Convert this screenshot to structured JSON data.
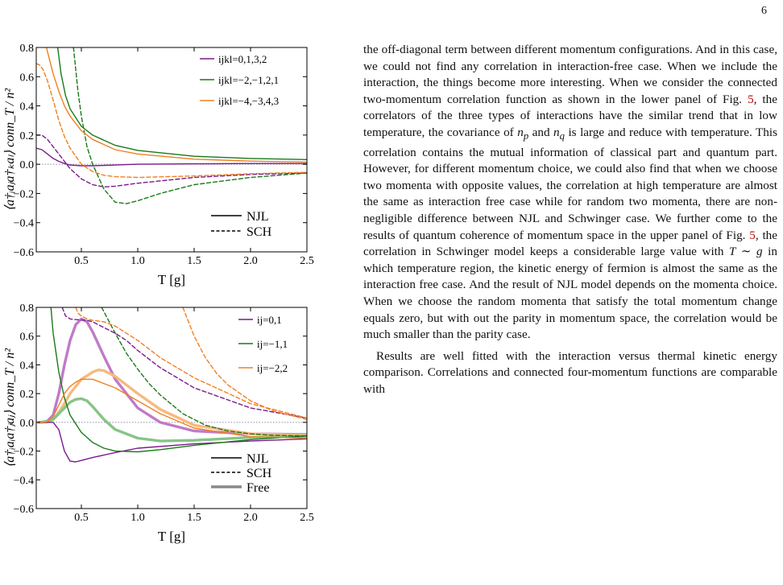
{
  "page_number": "6",
  "chart_data": [
    {
      "type": "line",
      "panel": "top",
      "xlabel": "T [g]",
      "ylabel": "⟨a†ᵢaⱼa†ₖaₗ⟩ conn_T / n²",
      "xlim": [
        0.1,
        2.5
      ],
      "ylim": [
        -0.6,
        0.8
      ],
      "xticks": [
        "0.5",
        "1.0",
        "1.5",
        "2.0",
        "2.5"
      ],
      "yticks": [
        "−0.6",
        "−0.4",
        "−0.2",
        "0.0",
        "0.2",
        "0.4",
        "0.6",
        "0.8"
      ],
      "legend_color": [
        {
          "label": "ijkl=0,1,3,2",
          "color": "#7a1b8c"
        },
        {
          "label": "ijkl=−2,−1,2,1",
          "color": "#1a7a1a"
        },
        {
          "label": "ijkl=−4,−3,4,3",
          "color": "#f08020"
        }
      ],
      "legend_style": [
        {
          "label": "NJL",
          "style": "solid"
        },
        {
          "label": "SCH",
          "style": "dashed"
        }
      ],
      "series": [
        {
          "model": "NJL",
          "color": "#7a1b8c",
          "dash": false,
          "x": [
            0.1,
            0.15,
            0.2,
            0.25,
            0.3,
            0.35,
            0.4,
            0.5,
            0.6,
            0.8,
            1.0,
            1.5,
            2.0,
            2.5
          ],
          "y": [
            0.11,
            0.1,
            0.07,
            0.04,
            0.02,
            0.005,
            -0.005,
            -0.01,
            -0.01,
            -0.005,
            0.0,
            0.003,
            0.005,
            0.005
          ]
        },
        {
          "model": "SCH",
          "color": "#7a1b8c",
          "dash": true,
          "x": [
            0.1,
            0.15,
            0.2,
            0.25,
            0.3,
            0.4,
            0.5,
            0.6,
            0.7,
            0.8,
            1.0,
            1.5,
            2.0,
            2.5
          ],
          "y": [
            0.2,
            0.2,
            0.17,
            0.12,
            0.07,
            -0.03,
            -0.1,
            -0.14,
            -0.155,
            -0.15,
            -0.13,
            -0.09,
            -0.07,
            -0.06
          ]
        },
        {
          "model": "NJL",
          "color": "#1a7a1a",
          "dash": false,
          "x": [
            0.29,
            0.32,
            0.36,
            0.4,
            0.5,
            0.6,
            0.8,
            1.0,
            1.5,
            2.0,
            2.5
          ],
          "y": [
            0.8,
            0.62,
            0.47,
            0.38,
            0.26,
            0.2,
            0.13,
            0.095,
            0.055,
            0.04,
            0.032
          ]
        },
        {
          "model": "SCH",
          "color": "#1a7a1a",
          "dash": true,
          "x": [
            0.43,
            0.45,
            0.47,
            0.5,
            0.55,
            0.6,
            0.7,
            0.8,
            0.9,
            1.0,
            1.2,
            1.5,
            2.0,
            2.5
          ],
          "y": [
            0.8,
            0.65,
            0.5,
            0.33,
            0.12,
            0.0,
            -0.17,
            -0.26,
            -0.27,
            -0.25,
            -0.2,
            -0.14,
            -0.09,
            -0.06
          ]
        },
        {
          "model": "NJL",
          "color": "#f08020",
          "dash": false,
          "x": [
            0.19,
            0.22,
            0.25,
            0.3,
            0.35,
            0.4,
            0.5,
            0.6,
            0.8,
            1.0,
            1.5,
            2.0,
            2.5
          ],
          "y": [
            0.8,
            0.71,
            0.62,
            0.5,
            0.4,
            0.33,
            0.23,
            0.17,
            0.1,
            0.07,
            0.035,
            0.022,
            0.015
          ]
        },
        {
          "model": "SCH",
          "color": "#f08020",
          "dash": true,
          "x": [
            0.1,
            0.13,
            0.16,
            0.2,
            0.25,
            0.3,
            0.35,
            0.4,
            0.5,
            0.6,
            0.7,
            0.8,
            1.0,
            1.5,
            2.0,
            2.5
          ],
          "y": [
            0.69,
            0.68,
            0.65,
            0.57,
            0.44,
            0.3,
            0.19,
            0.11,
            0.0,
            -0.05,
            -0.075,
            -0.085,
            -0.09,
            -0.08,
            -0.065,
            -0.055
          ]
        }
      ]
    },
    {
      "type": "line",
      "panel": "bottom",
      "xlabel": "T [g]",
      "ylabel": "⟨a†ᵢaᵢa†ⱼaⱼ⟩ conn_T / n²",
      "xlim": [
        0.1,
        2.5
      ],
      "ylim": [
        -0.6,
        0.8
      ],
      "xticks": [
        "0.5",
        "1.0",
        "1.5",
        "2.0",
        "2.5"
      ],
      "yticks": [
        "−0.6",
        "−0.4",
        "−0.2",
        "0.0",
        "0.2",
        "0.4",
        "0.6",
        "0.8"
      ],
      "legend_color": [
        {
          "label": "ij=0,1",
          "color": "#7a1b8c"
        },
        {
          "label": "ij=−1,1",
          "color": "#1a7a1a"
        },
        {
          "label": "ij=−2,2",
          "color": "#f08020"
        }
      ],
      "legend_style": [
        {
          "label": "NJL",
          "style": "solid"
        },
        {
          "label": "SCH",
          "style": "dashed"
        },
        {
          "label": "Free",
          "style": "thick"
        }
      ],
      "series": [
        {
          "model": "NJL",
          "color": "#7a1b8c",
          "dash": false,
          "thick": false,
          "x": [
            0.15,
            0.2,
            0.25,
            0.3,
            0.35,
            0.4,
            0.45,
            0.5,
            0.6,
            0.8,
            1.0,
            1.5,
            2.0,
            2.5
          ],
          "y": [
            0.0,
            0.0,
            0.0,
            -0.05,
            -0.2,
            -0.27,
            -0.275,
            -0.265,
            -0.245,
            -0.21,
            -0.18,
            -0.15,
            -0.13,
            -0.115
          ]
        },
        {
          "model": "SCH",
          "color": "#7a1b8c",
          "dash": true,
          "thick": false,
          "x": [
            0.33,
            0.36,
            0.4,
            0.45,
            0.5,
            0.55,
            0.6,
            0.7,
            0.8,
            0.9,
            1.0,
            1.2,
            1.5,
            2.0,
            2.5
          ],
          "y": [
            0.8,
            0.74,
            0.72,
            0.715,
            0.712,
            0.71,
            0.7,
            0.66,
            0.62,
            0.57,
            0.5,
            0.38,
            0.24,
            0.1,
            0.03
          ]
        },
        {
          "model": "NJL",
          "color": "#1a7a1a",
          "dash": false,
          "thick": false,
          "x": [
            0.23,
            0.25,
            0.3,
            0.35,
            0.4,
            0.5,
            0.6,
            0.7,
            0.8,
            1.0,
            1.2,
            1.5,
            2.0,
            2.5
          ],
          "y": [
            0.8,
            0.62,
            0.35,
            0.17,
            0.05,
            -0.07,
            -0.14,
            -0.18,
            -0.2,
            -0.205,
            -0.19,
            -0.16,
            -0.12,
            -0.095
          ]
        },
        {
          "model": "SCH",
          "color": "#1a7a1a",
          "dash": true,
          "thick": false,
          "x": [
            0.68,
            0.72,
            0.78,
            0.85,
            0.9,
            1.0,
            1.1,
            1.2,
            1.4,
            1.6,
            1.8,
            2.0,
            2.2,
            2.5
          ],
          "y": [
            0.8,
            0.74,
            0.65,
            0.55,
            0.48,
            0.37,
            0.27,
            0.19,
            0.06,
            -0.02,
            -0.06,
            -0.08,
            -0.09,
            -0.095
          ]
        },
        {
          "model": "NJL",
          "color": "#f08020",
          "dash": false,
          "thick": false,
          "x": [
            0.12,
            0.15,
            0.2,
            0.25,
            0.3,
            0.35,
            0.4,
            0.45,
            0.5,
            0.6,
            0.8,
            1.0,
            1.2,
            1.5,
            2.0,
            2.5
          ],
          "y": [
            0.0,
            0.0,
            0.005,
            0.04,
            0.12,
            0.2,
            0.25,
            0.28,
            0.3,
            0.3,
            0.24,
            0.15,
            0.06,
            -0.04,
            -0.1,
            -0.11
          ]
        },
        {
          "model": "SCH",
          "color": "#f08020",
          "dash": true,
          "thick": false,
          "x": [
            0.45,
            0.47,
            0.5,
            0.55,
            0.6,
            0.7,
            0.8,
            1.0,
            1.2,
            1.5,
            2.0,
            2.5
          ],
          "y": [
            0.8,
            0.76,
            0.74,
            0.72,
            0.71,
            0.7,
            0.67,
            0.57,
            0.45,
            0.31,
            0.13,
            0.03
          ]
        },
        {
          "model": "SCH",
          "color": "#f08020",
          "dash": true,
          "thick": false,
          "x": [
            1.4,
            1.5,
            1.6,
            1.7,
            1.8,
            2.0,
            2.2,
            2.5
          ],
          "y": [
            0.8,
            0.6,
            0.45,
            0.34,
            0.26,
            0.15,
            0.08,
            0.02
          ]
        },
        {
          "model": "Free",
          "color": "#c07ac8",
          "dash": false,
          "thick": true,
          "x": [
            0.15,
            0.2,
            0.25,
            0.3,
            0.35,
            0.4,
            0.45,
            0.5,
            0.55,
            0.6,
            0.7,
            0.8,
            1.0,
            1.2,
            1.5,
            2.0,
            2.5
          ],
          "y": [
            0.0,
            0.01,
            0.05,
            0.2,
            0.4,
            0.57,
            0.68,
            0.72,
            0.7,
            0.63,
            0.46,
            0.3,
            0.1,
            0.0,
            -0.06,
            -0.08,
            -0.085
          ]
        },
        {
          "model": "Free",
          "color": "#f7b980",
          "dash": false,
          "thick": true,
          "x": [
            0.12,
            0.2,
            0.25,
            0.3,
            0.35,
            0.4,
            0.5,
            0.6,
            0.65,
            0.7,
            0.8,
            1.0,
            1.2,
            1.5,
            2.0,
            2.5
          ],
          "y": [
            0.0,
            0.005,
            0.02,
            0.07,
            0.13,
            0.2,
            0.3,
            0.35,
            0.365,
            0.36,
            0.32,
            0.2,
            0.09,
            -0.02,
            -0.08,
            -0.09
          ]
        },
        {
          "model": "Free",
          "color": "#86c486",
          "dash": false,
          "thick": true,
          "x": [
            0.12,
            0.2,
            0.25,
            0.3,
            0.35,
            0.4,
            0.45,
            0.5,
            0.55,
            0.6,
            0.7,
            0.8,
            1.0,
            1.2,
            1.5,
            2.0,
            2.5
          ],
          "y": [
            0.0,
            0.005,
            0.02,
            0.06,
            0.1,
            0.14,
            0.16,
            0.165,
            0.15,
            0.11,
            0.02,
            -0.05,
            -0.11,
            -0.13,
            -0.125,
            -0.105,
            -0.095
          ]
        }
      ]
    }
  ],
  "paragraphs": [
    "the off-diagonal term between different momentum configurations. And in this case, we could not find any correlation in interaction-free case. When we include the interaction, the things become more interesting. When we consider the connected two-momentum correlation function as shown in the lower panel of Fig. 5, the correlators of the three types of interactions have the similar trend that in low temperature, the covariance of n_p and n_q is large and reduce with temperature. This correlation contains the mutual information of classical part and quantum part. However, for different momentum choice, we could also find that when we choose two momenta with opposite values, the correlation at high temperature are almost the same as interaction free case while for random two momenta, there are non-negligible difference between NJL and Schwinger case. We further come to the results of quantum coherence of momentum space in the upper panel of Fig. 5, the correlation in Schwinger model keeps a considerable large value with T ∼ g in which temperature region, the kinetic energy of fermion is almost the same as the interaction free case. And the result of NJL model depends on the momenta choice. When we choose the random momenta that satisfy the total momentum change equals zero, but with out the parity in momentum space, the correlation would be much smaller than the parity case.",
    "Results are well fitted with the interaction versus thermal kinetic energy comparison. Correlations and connected four-momentum functions are comparable with"
  ],
  "text_parts": {
    "p1_a": "the off-diagonal term between different momentum configurations. And in this case, we could not find any correlation in interaction-free case. When we include the interaction, the things become more interesting. When we consider the connected two-momentum correlation function as shown in the lower panel of Fig. ",
    "ref": "5",
    "p1_b": ", the correlators of the three types of interactions have the similar trend that in low temperature, the covariance of ",
    "np": "n",
    "np_sub": "p",
    "and": " and ",
    "nq": "n",
    "nq_sub": "q",
    "p1_c": " is large and reduce with temperature. This correlation contains the mutual information of classical part and quantum part. However, for different momentum choice, we could also find that when we choose two momenta with opposite values, the correlation at high temperature are almost the same as interaction free case while for random two momenta, there are non-negligible difference between NJL and Schwinger case. We further come to the results of quantum coherence of momentum space in the upper panel of Fig. ",
    "p1_d": ", the correlation in Schwinger model keeps a considerable large value with ",
    "tg": "T ∼ g",
    "p1_e": " in which temperature region, the kinetic energy of fermion is almost the same as the interaction free case. And the result of NJL model depends on the momenta choice. When we choose the random momenta that satisfy the total momentum change equals zero, but with out the parity in momentum space, the correlation would be much smaller than the parity case."
  }
}
